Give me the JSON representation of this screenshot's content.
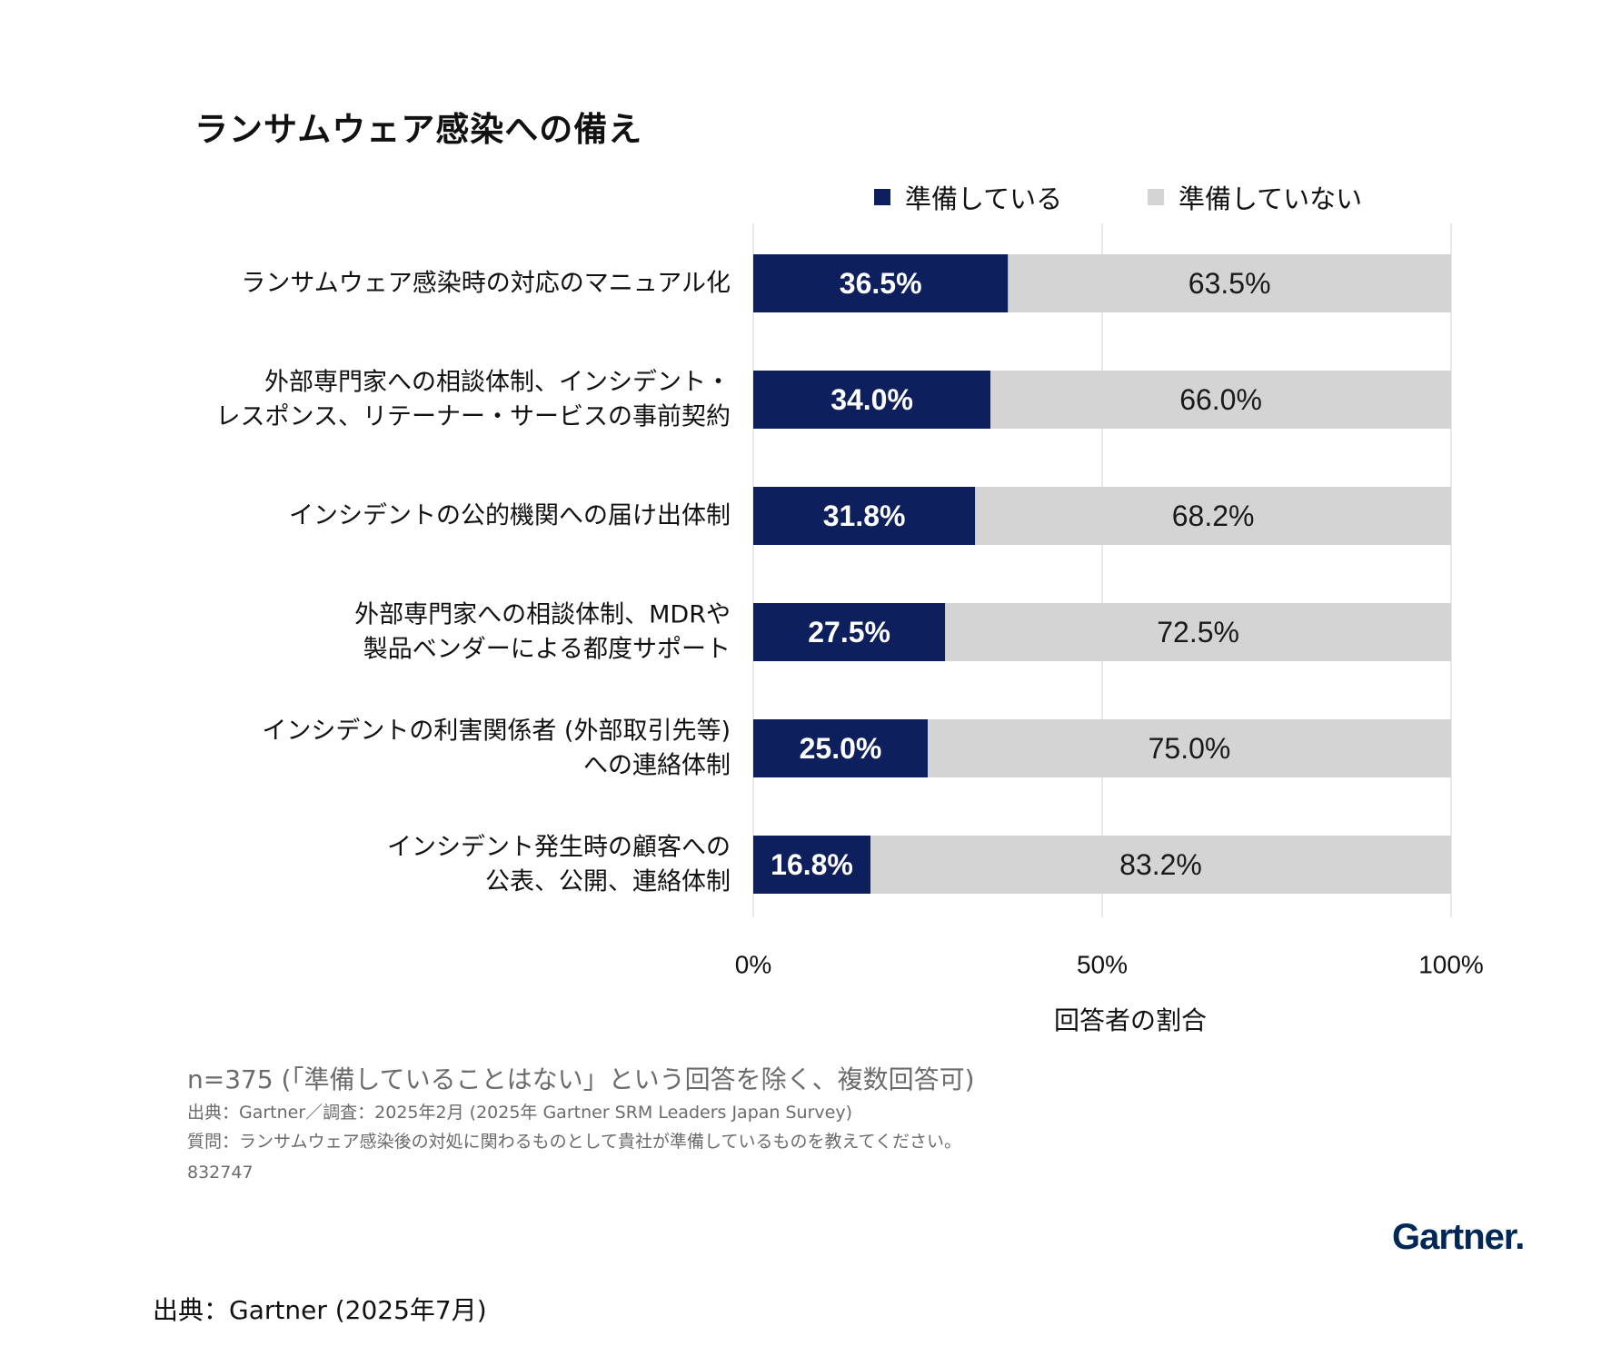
{
  "title": "ランサムウェア感染への備え",
  "legend": {
    "prepared": "準備している",
    "not_prepared": "準備していない"
  },
  "colors": {
    "prepared": "#0d1f5c",
    "not_prepared": "#d4d4d4",
    "gridline": "#e2e2e2",
    "brand": "#002856"
  },
  "chart_data": {
    "type": "bar",
    "orientation": "horizontal",
    "stacked": true,
    "categories": [
      [
        "ランサムウェア感染時の対応のマニュアル化"
      ],
      [
        "外部専門家への相談体制、インシデント・",
        "レスポンス、リテーナー・サービスの事前契約"
      ],
      [
        "インシデントの公的機関への届け出体制"
      ],
      [
        "外部専門家への相談体制、MDRや",
        "製品ベンダーによる都度サポート"
      ],
      [
        "インシデントの利害関係者 (外部取引先等)",
        "への連絡体制"
      ],
      [
        "インシデント発生時の顧客への",
        "公表、公開、連絡体制"
      ]
    ],
    "series": [
      {
        "name": "準備している",
        "values": [
          36.5,
          34.0,
          31.8,
          27.5,
          25.0,
          16.8
        ],
        "labels": [
          "36.5%",
          "34.0%",
          "31.8%",
          "27.5%",
          "25.0%",
          "16.8%"
        ]
      },
      {
        "name": "準備していない",
        "values": [
          63.5,
          66.0,
          68.2,
          72.5,
          75.0,
          83.2
        ],
        "labels": [
          "63.5%",
          "66.0%",
          "68.2%",
          "72.5%",
          "75.0%",
          "83.2%"
        ]
      }
    ],
    "xlim": [
      0,
      100
    ],
    "xticks": [
      "0%",
      "50%",
      "100%"
    ],
    "xlabel": "回答者の割合",
    "grid": true,
    "legend_position": "top"
  },
  "notes": {
    "sample": "n=375 (「準備していることはない」という回答を除く、複数回答可)",
    "source": "出典：Gartner／調査：2025年2月 (2025年 Gartner SRM Leaders Japan Survey)",
    "question": "質問：ランサムウェア感染後の対処に関わるものとして貴社が準備しているものを教えてください。",
    "id": "832747"
  },
  "brand": "Gartner.",
  "footer_source": "出典：Gartner (2025年7月)"
}
